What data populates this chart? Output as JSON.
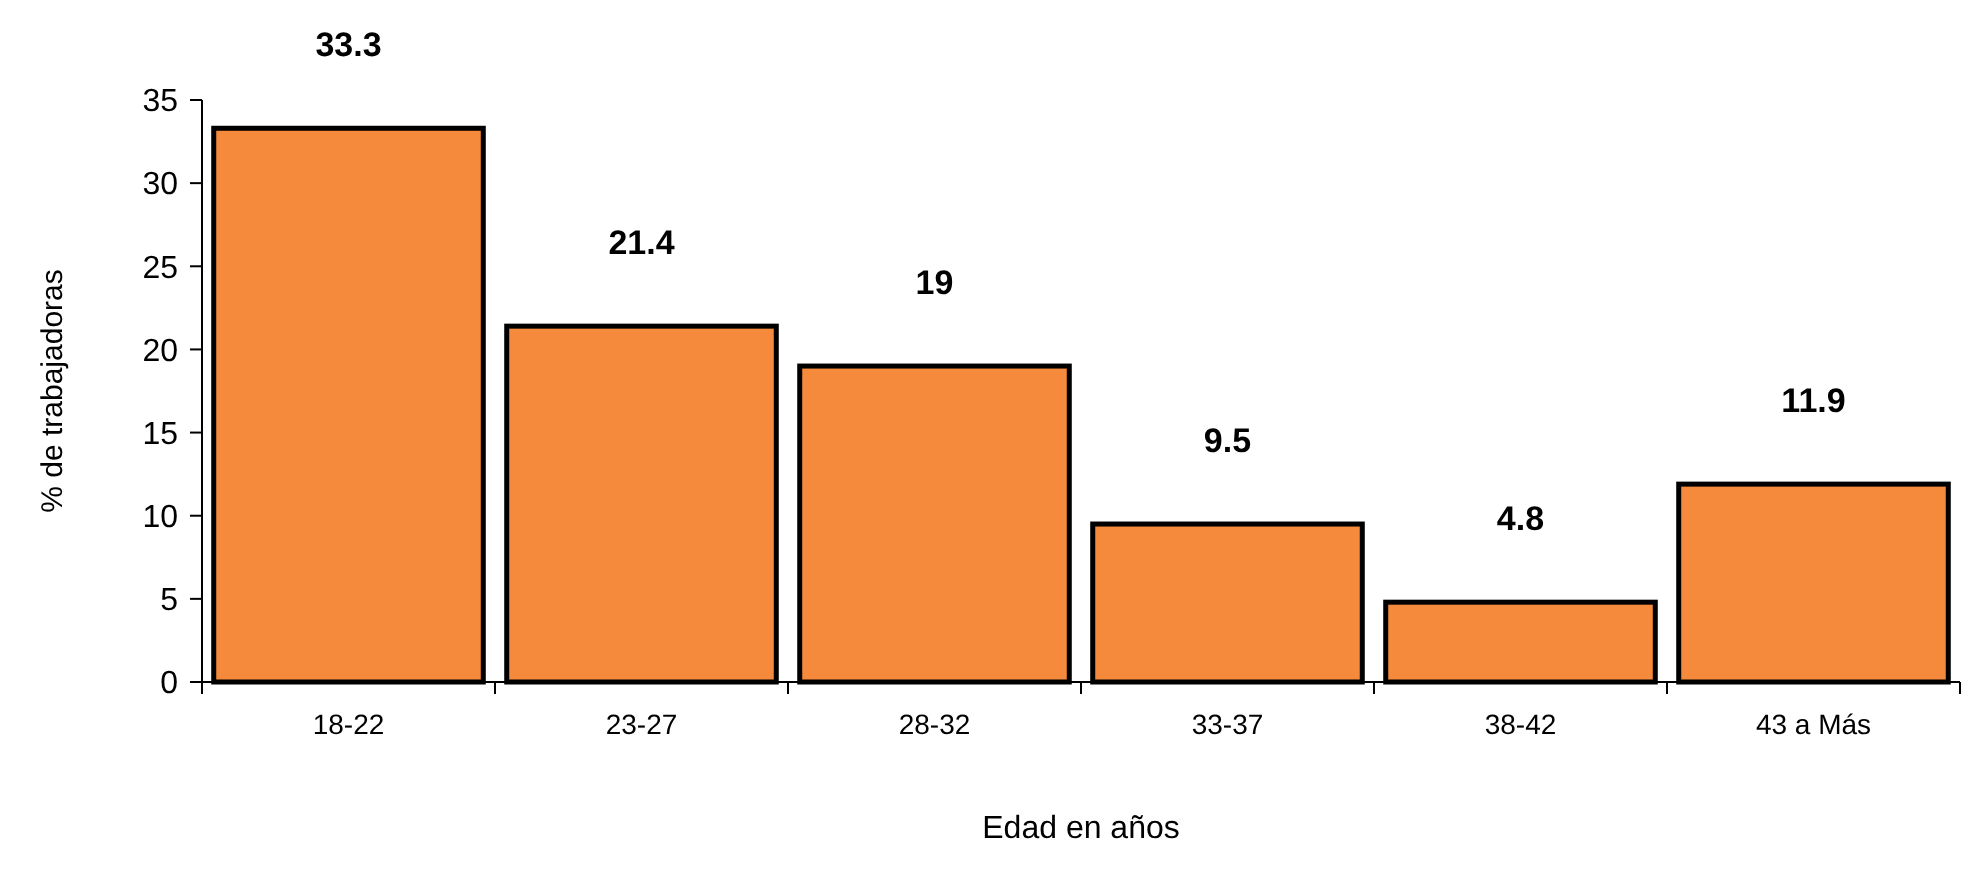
{
  "chart_data": {
    "type": "bar",
    "xlabel": "Edad en años",
    "ylabel": "% de trabajadoras",
    "categories": [
      "18-22",
      "23-27",
      "28-32",
      "33-37",
      "38-42",
      "43 a Más"
    ],
    "values": [
      33.3,
      21.4,
      19,
      9.5,
      4.8,
      11.9
    ],
    "color": "#f58a3c",
    "ylim": [
      0,
      35
    ],
    "yticks": [
      0,
      5,
      10,
      15,
      20,
      25,
      30,
      35
    ],
    "grid": false,
    "data_labels": true
  }
}
